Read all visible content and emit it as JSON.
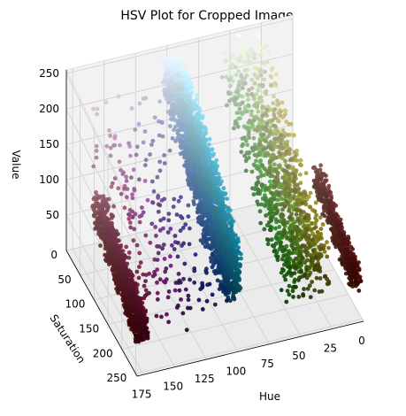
{
  "chart_data": {
    "type": "scatter",
    "projection": "3d",
    "title": "HSV Plot for Cropped Image",
    "xlabel": "Hue",
    "ylabel": "Saturation",
    "zlabel": "Value",
    "xlim": [
      0,
      180
    ],
    "ylim": [
      0,
      255
    ],
    "zlim": [
      0,
      255
    ],
    "x_ticks": [
      "0",
      "25",
      "50",
      "75",
      "100",
      "125",
      "150",
      "175"
    ],
    "y_ticks": [
      "0",
      "50",
      "100",
      "150",
      "200",
      "250"
    ],
    "z_ticks": [
      "50",
      "100",
      "150",
      "200",
      "250"
    ],
    "grid": true,
    "point_color": "hsv(h, s, v) of each pixel",
    "clusters": [
      {
        "hue_range": [
          95,
          110
        ],
        "sat_range": [
          20,
          250
        ],
        "value_range": [
          60,
          255
        ],
        "color": "#1ba8e0",
        "density": "very high"
      },
      {
        "hue_range": [
          25,
          60
        ],
        "sat_range": [
          10,
          250
        ],
        "value_range": [
          30,
          220
        ],
        "color": "#b3b81a",
        "density": "high"
      },
      {
        "hue_range": [
          170,
          180
        ],
        "sat_range": [
          90,
          250
        ],
        "value_range": [
          40,
          130
        ],
        "color": "#8c1010",
        "density": "high"
      },
      {
        "hue_range": [
          0,
          8
        ],
        "sat_range": [
          100,
          250
        ],
        "value_range": [
          40,
          110
        ],
        "color": "#9a1414",
        "density": "medium"
      },
      {
        "hue_range": [
          110,
          175
        ],
        "sat_range": [
          20,
          250
        ],
        "value_range": [
          30,
          200
        ],
        "color": "#4a3a5c",
        "density": "sparse"
      }
    ]
  }
}
